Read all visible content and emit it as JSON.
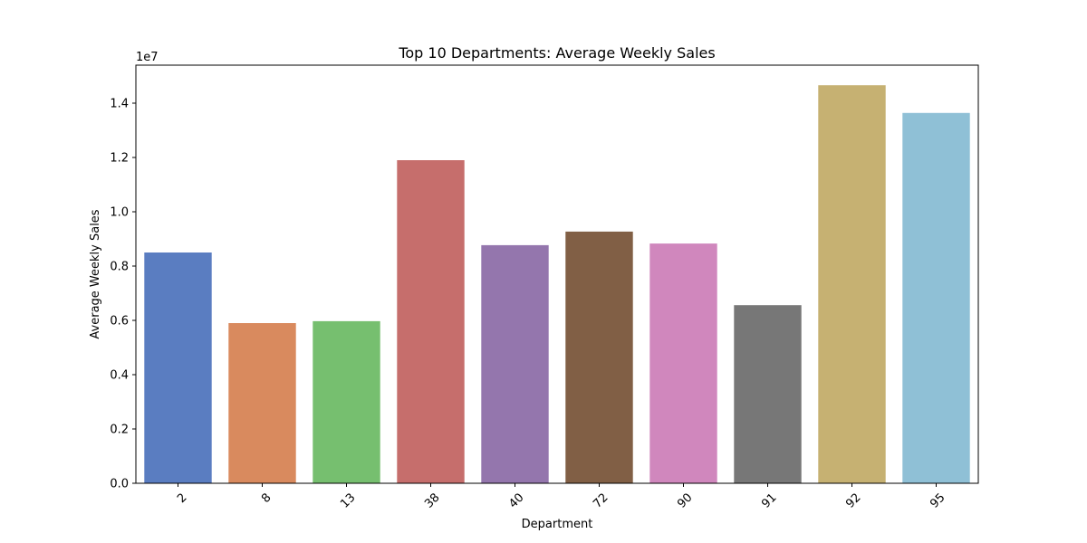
{
  "chart_data": {
    "type": "bar",
    "title": "Top 10 Departments: Average Weekly Sales",
    "xlabel": "Department",
    "ylabel": "Average Weekly Sales",
    "offset_label": "1e7",
    "categories": [
      "2",
      "8",
      "13",
      "38",
      "40",
      "72",
      "90",
      "91",
      "92",
      "95"
    ],
    "values": [
      8500000,
      5900000,
      5970000,
      11900000,
      8770000,
      9270000,
      8830000,
      6560000,
      14660000,
      13640000
    ],
    "colors": [
      "#5a7dc1",
      "#d98a5e",
      "#76bf6f",
      "#c66e6c",
      "#9476ad",
      "#815f45",
      "#d087bd",
      "#777777",
      "#c6b172",
      "#8fc0d6"
    ],
    "ylim": [
      0,
      15400000
    ],
    "yticks": [
      0,
      2000000,
      4000000,
      6000000,
      8000000,
      10000000,
      12000000,
      14000000
    ],
    "ytick_labels": [
      "0.0",
      "0.2",
      "0.4",
      "0.6",
      "0.8",
      "1.0",
      "1.2",
      "1.4"
    ],
    "grid": false,
    "legend": "none"
  }
}
